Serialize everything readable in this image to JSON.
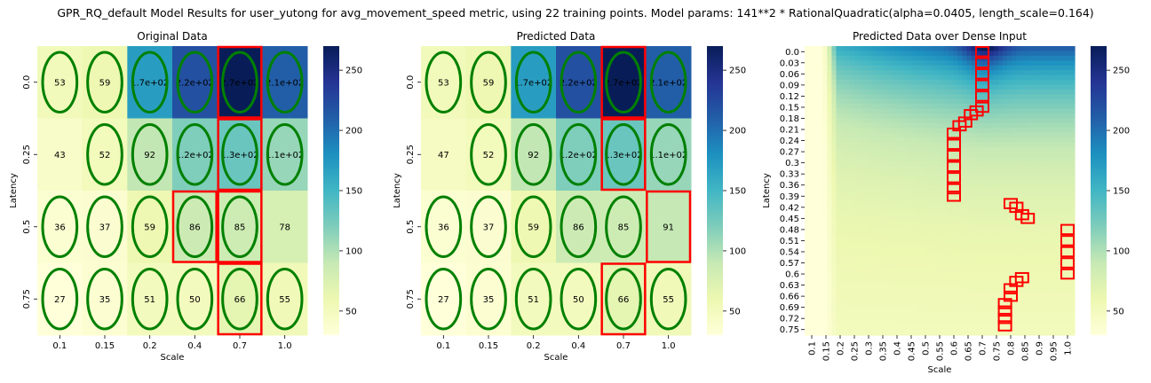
{
  "suptitle": "GPR_RQ_default Model Results for user_yutong for avg_movement_speed metric, using 22 training points. Model params: 141**2 * RationalQuadratic(alpha=0.0405, length_scale=0.164)",
  "chart_data": [
    {
      "type": "heatmap",
      "title": "Original Data",
      "xlabel": "Scale",
      "ylabel": "Latency",
      "x_categories": [
        "0.1",
        "0.15",
        "0.2",
        "0.4",
        "0.7",
        "1.0"
      ],
      "y_categories": [
        "0.0",
        "0.25",
        "0.5",
        "0.75"
      ],
      "values": [
        [
          53,
          59,
          170,
          220,
          270,
          210
        ],
        [
          43,
          52,
          92,
          120,
          130,
          110
        ],
        [
          36,
          37,
          59,
          86,
          85,
          78
        ],
        [
          27,
          35,
          51,
          50,
          66,
          55
        ]
      ],
      "annotations": [
        [
          "53",
          "59",
          "1.7e+02",
          "2.2e+02",
          "2.7e+02",
          "2.1e+02"
        ],
        [
          "43",
          "52",
          "92",
          "1.2e+02",
          "1.3e+02",
          "1.1e+02"
        ],
        [
          "36",
          "37",
          "59",
          "86",
          "85",
          "78"
        ],
        [
          "27",
          "35",
          "51",
          "50",
          "66",
          "55"
        ]
      ],
      "training_points_circled": [
        [
          1,
          1,
          1,
          1,
          1,
          1
        ],
        [
          0,
          1,
          1,
          1,
          1,
          1
        ],
        [
          1,
          1,
          1,
          1,
          1,
          0
        ],
        [
          1,
          1,
          1,
          1,
          1,
          1
        ]
      ],
      "red_boxes": [
        [
          0,
          4
        ],
        [
          1,
          4
        ],
        [
          2,
          3
        ],
        [
          2,
          4
        ],
        [
          3,
          4
        ]
      ],
      "colorbar": {
        "range": [
          30,
          270
        ],
        "ticks": [
          "50",
          "100",
          "150",
          "200",
          "250"
        ]
      },
      "colormap": "YlGnBu"
    },
    {
      "type": "heatmap",
      "title": "Predicted Data",
      "xlabel": "Scale",
      "ylabel": "Latency",
      "x_categories": [
        "0.1",
        "0.15",
        "0.2",
        "0.4",
        "0.7",
        "1.0"
      ],
      "y_categories": [
        "0.0",
        "0.25",
        "0.5",
        "0.75"
      ],
      "values": [
        [
          53,
          59,
          170,
          220,
          270,
          210
        ],
        [
          47,
          52,
          92,
          120,
          130,
          110
        ],
        [
          36,
          37,
          59,
          86,
          85,
          91
        ],
        [
          27,
          35,
          51,
          50,
          66,
          55
        ]
      ],
      "annotations": [
        [
          "53",
          "59",
          "1.7e+02",
          "2.2e+02",
          "2.7e+02",
          "2.1e+02"
        ],
        [
          "47",
          "52",
          "92",
          "1.2e+02",
          "1.3e+02",
          "1.1e+02"
        ],
        [
          "36",
          "37",
          "59",
          "86",
          "85",
          "91"
        ],
        [
          "27",
          "35",
          "51",
          "50",
          "66",
          "55"
        ]
      ],
      "training_points_circled": [
        [
          1,
          1,
          1,
          1,
          1,
          1
        ],
        [
          0,
          1,
          1,
          1,
          1,
          1
        ],
        [
          1,
          1,
          1,
          1,
          1,
          0
        ],
        [
          1,
          1,
          1,
          1,
          1,
          1
        ]
      ],
      "red_boxes": [
        [
          0,
          4
        ],
        [
          1,
          4
        ],
        [
          2,
          5
        ],
        [
          3,
          4
        ]
      ],
      "colorbar": {
        "range": [
          30,
          270
        ],
        "ticks": [
          "50",
          "100",
          "150",
          "200",
          "250"
        ]
      },
      "colormap": "YlGnBu"
    },
    {
      "type": "heatmap",
      "title": "Predicted Data over Dense Input",
      "xlabel": "Scale",
      "ylabel": "Latency",
      "x_categories": [
        "0.1",
        "0.15",
        "0.2",
        "0.25",
        "0.3",
        "0.35",
        "0.4",
        "0.45",
        "0.5",
        "0.55",
        "0.6",
        "0.65",
        "0.7",
        "0.75",
        "0.8",
        "0.85",
        "0.9",
        "0.95",
        "1.0"
      ],
      "y_categories": [
        "0.0",
        "0.03",
        "0.06",
        "0.09",
        "0.12",
        "0.15",
        "0.18",
        "0.21",
        "0.24",
        "0.27",
        "0.3",
        "0.33",
        "0.36",
        "0.39",
        "0.42",
        "0.45",
        "0.48",
        "0.51",
        "0.54",
        "0.57",
        "0.6",
        "0.63",
        "0.66",
        "0.69",
        "0.72",
        "0.75"
      ],
      "red_boxes": [
        [
          0.0,
          0.7
        ],
        [
          0.03,
          0.7
        ],
        [
          0.06,
          0.7
        ],
        [
          0.09,
          0.7
        ],
        [
          0.12,
          0.7
        ],
        [
          0.15,
          0.7
        ],
        [
          0.16,
          0.68
        ],
        [
          0.17,
          0.66
        ],
        [
          0.19,
          0.64
        ],
        [
          0.2,
          0.62
        ],
        [
          0.22,
          0.6
        ],
        [
          0.25,
          0.6
        ],
        [
          0.28,
          0.6
        ],
        [
          0.31,
          0.6
        ],
        [
          0.34,
          0.6
        ],
        [
          0.37,
          0.6
        ],
        [
          0.39,
          0.6
        ],
        [
          0.41,
          0.8
        ],
        [
          0.42,
          0.82
        ],
        [
          0.44,
          0.84
        ],
        [
          0.45,
          0.86
        ],
        [
          0.48,
          1.0
        ],
        [
          0.51,
          1.0
        ],
        [
          0.54,
          1.0
        ],
        [
          0.57,
          1.0
        ],
        [
          0.6,
          1.0
        ],
        [
          0.61,
          0.84
        ],
        [
          0.62,
          0.82
        ],
        [
          0.64,
          0.8
        ],
        [
          0.66,
          0.8
        ],
        [
          0.68,
          0.78
        ],
        [
          0.7,
          0.78
        ],
        [
          0.72,
          0.78
        ],
        [
          0.74,
          0.78
        ]
      ],
      "colorbar": {
        "range": [
          30,
          270
        ],
        "ticks": [
          "50",
          "100",
          "150",
          "200",
          "250"
        ]
      },
      "colormap": "YlGnBu"
    }
  ]
}
